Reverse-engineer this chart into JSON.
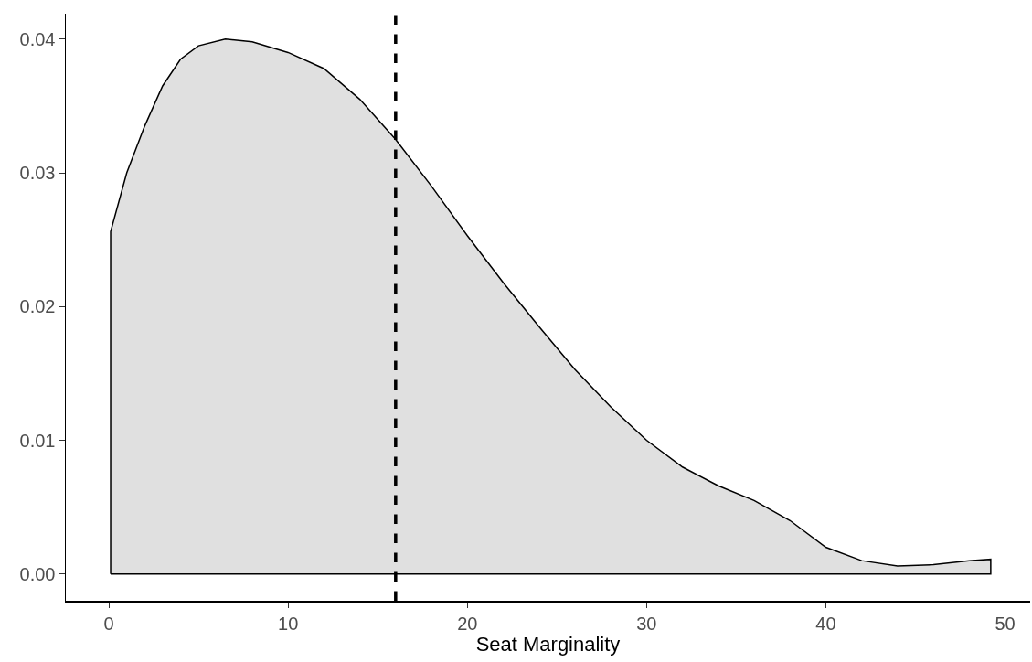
{
  "chart_data": {
    "type": "area",
    "xlabel": "Seat Marginality",
    "x": [
      0.1,
      1,
      2,
      3,
      4,
      5,
      6.5,
      8,
      10,
      12,
      14,
      16,
      18,
      20,
      22,
      24,
      26,
      28,
      30,
      32,
      34,
      36,
      38,
      40,
      42,
      44,
      46,
      48,
      49.2
    ],
    "series": [
      {
        "color": "#e0e0e0",
        "values": [
          0.0256,
          0.03,
          0.0335,
          0.0365,
          0.0385,
          0.0395,
          0.04,
          0.0398,
          0.039,
          0.0378,
          0.0355,
          0.0325,
          0.029,
          0.0253,
          0.0218,
          0.0185,
          0.0153,
          0.0125,
          0.01,
          0.008,
          0.0066,
          0.0055,
          0.004,
          0.002,
          0.001,
          0.0006,
          0.0007,
          0.001,
          0.0011
        ]
      }
    ],
    "xlim": [
      -2.4,
      51.4
    ],
    "xticks": [
      0,
      10,
      20,
      30,
      40,
      50
    ],
    "ylim": [
      -0.002,
      0.0419
    ],
    "yticks": [
      {
        "value": 0,
        "label": "0.00"
      },
      {
        "value": 0.01,
        "label": "0.01"
      },
      {
        "value": 0.02,
        "label": "0.02"
      },
      {
        "value": 0.03,
        "label": "0.03"
      },
      {
        "value": 0.04,
        "label": "0.04"
      }
    ],
    "ref_lines": [
      {
        "axis": "x",
        "value": 16,
        "line_style": "dashed",
        "color": "#000000"
      }
    ],
    "grid": false
  }
}
